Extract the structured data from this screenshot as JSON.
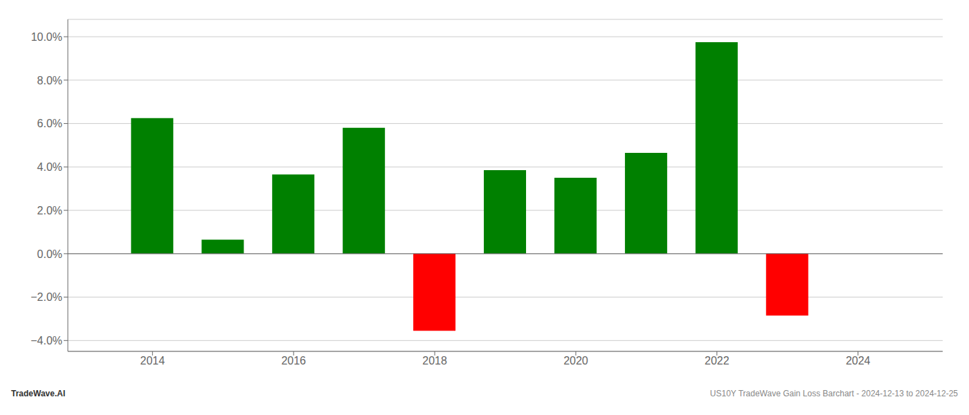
{
  "chart_data": {
    "type": "bar",
    "x": [
      2014,
      2015,
      2016,
      2017,
      2018,
      2019,
      2020,
      2021,
      2022,
      2023
    ],
    "values": [
      0.0625,
      0.0065,
      0.0365,
      0.058,
      -0.0355,
      0.0385,
      0.035,
      0.0465,
      0.0975,
      -0.0285
    ],
    "colors": [
      "#008000",
      "#008000",
      "#008000",
      "#008000",
      "#ff0000",
      "#008000",
      "#008000",
      "#008000",
      "#008000",
      "#ff0000"
    ],
    "xlim": [
      2012.8,
      2025.2
    ],
    "xticks": [
      2014,
      2016,
      2018,
      2020,
      2022,
      2024
    ],
    "ylim": [
      -0.045,
      0.108
    ],
    "yticks": [
      {
        "value": -0.04,
        "label": "−4.0%"
      },
      {
        "value": -0.02,
        "label": "−2.0%"
      },
      {
        "value": 0.0,
        "label": "0.0%"
      },
      {
        "value": 0.02,
        "label": "2.0%"
      },
      {
        "value": 0.04,
        "label": "4.0%"
      },
      {
        "value": 0.06,
        "label": "6.0%"
      },
      {
        "value": 0.08,
        "label": "8.0%"
      },
      {
        "value": 0.1,
        "label": "10.0%"
      }
    ],
    "grid": true,
    "annotations": [
      "TradeWave.AI",
      "US10Y TradeWave Gain Loss Barchart - 2024-12-13 to 2024-12-25"
    ]
  }
}
